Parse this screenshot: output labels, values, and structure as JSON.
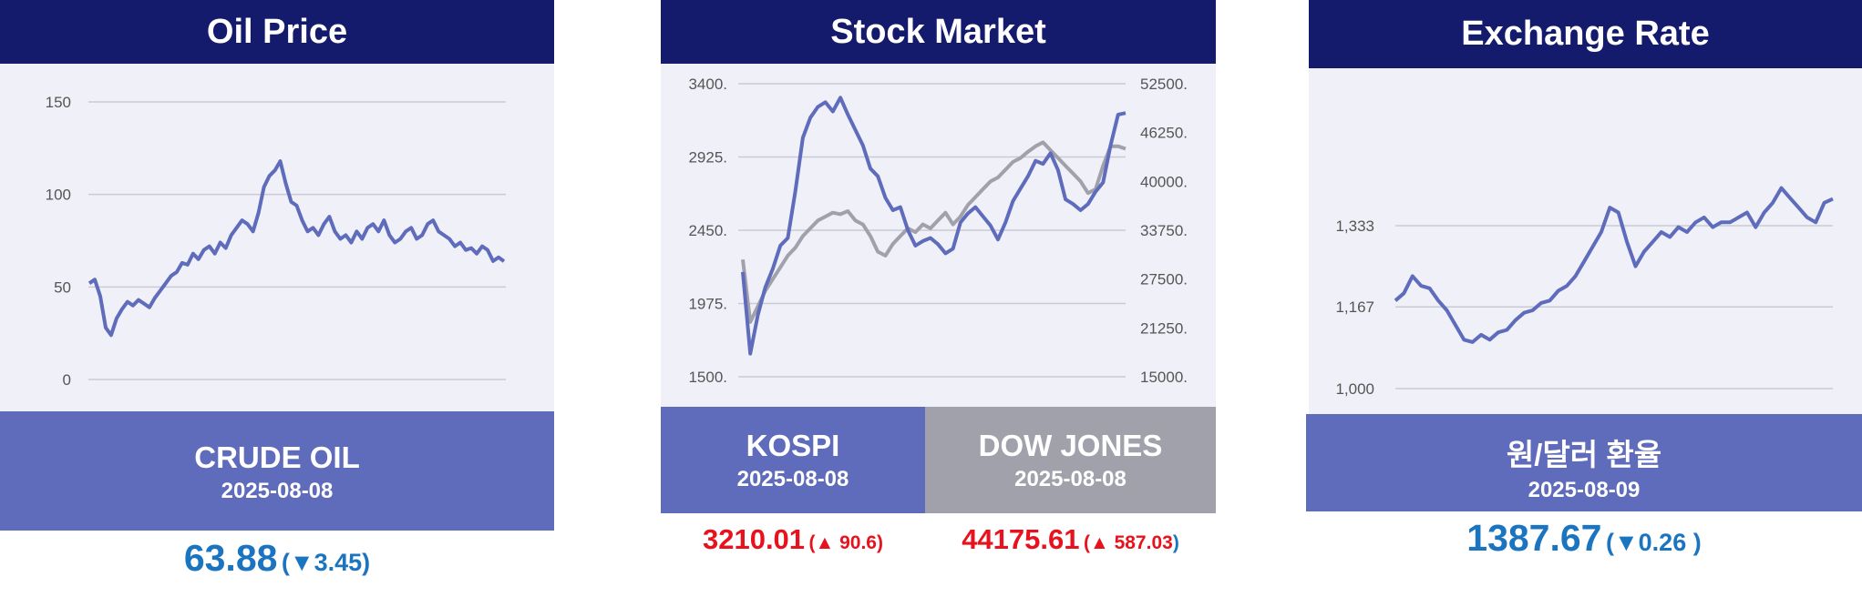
{
  "colors": {
    "header": "#141a6c",
    "plot_bg": "#f0f1f8",
    "band": "#5f6bbb",
    "band_gray": "#a0a1ab",
    "line_primary": "#5f6bbb",
    "line_secondary": "#a0a1ab",
    "up": "#e8121e",
    "down": "#1a74c0"
  },
  "oil": {
    "title": "Oil Price",
    "name": "CRUDE OIL",
    "date": "2025-08-08",
    "price": "63.88",
    "change_open": "(",
    "change": "▼3.45",
    "change_close": ")"
  },
  "stock": {
    "title": "Stock Market",
    "kospi": {
      "name": "KOSPI",
      "date": "2025-08-08",
      "price": "3210.01",
      "change_open": "(",
      "change": "▲ 90.6",
      "change_close": ")"
    },
    "dow": {
      "name": "DOW JONES",
      "date": "2025-08-08",
      "price": "44175.61",
      "change_open": "(",
      "change": "▲ 587.03",
      "change_close": ")"
    }
  },
  "fx": {
    "title": "Exchange Rate",
    "name": "원/달러 환율",
    "date": "2025-08-09",
    "price": "1387.67",
    "change_open": "(",
    "change": "▼0.26",
    "change_close": " )"
  },
  "chart_data": [
    {
      "type": "line",
      "title": "Oil Price",
      "ylim": [
        0,
        150
      ],
      "yticks": [
        "150",
        "100",
        "50",
        "0"
      ],
      "grid": true,
      "series": [
        {
          "name": "CRUDE OIL",
          "values": [
            52,
            54,
            45,
            28,
            24,
            33,
            38,
            42,
            40,
            43,
            41,
            39,
            44,
            48,
            52,
            56,
            58,
            63,
            62,
            68,
            65,
            70,
            72,
            68,
            74,
            71,
            78,
            82,
            86,
            84,
            80,
            90,
            104,
            110,
            113,
            118,
            106,
            96,
            94,
            86,
            80,
            82,
            78,
            84,
            88,
            80,
            76,
            78,
            74,
            80,
            76,
            82,
            84,
            80,
            86,
            78,
            74,
            76,
            80,
            82,
            76,
            78,
            84,
            86,
            80,
            78,
            76,
            72,
            74,
            70,
            71,
            68,
            72,
            70,
            64,
            66,
            63.88
          ]
        }
      ]
    },
    {
      "type": "line",
      "title": "Stock Market",
      "ylim_left": [
        1500,
        3400
      ],
      "yticks_left": [
        "3400.",
        "2925.",
        "2450.",
        "1975.",
        "1500."
      ],
      "ylim_right": [
        15000,
        52500
      ],
      "yticks_right": [
        "52500.",
        "46250.",
        "40000.",
        "33750.",
        "27500.",
        "21250.",
        "15000."
      ],
      "grid": true,
      "series": [
        {
          "name": "KOSPI",
          "axis": "left",
          "values": [
            2180,
            1650,
            1900,
            2080,
            2200,
            2350,
            2400,
            2700,
            3050,
            3180,
            3250,
            3280,
            3220,
            3310,
            3200,
            3100,
            3000,
            2850,
            2800,
            2660,
            2580,
            2600,
            2450,
            2350,
            2380,
            2400,
            2360,
            2300,
            2330,
            2500,
            2560,
            2600,
            2540,
            2480,
            2390,
            2500,
            2640,
            2720,
            2800,
            2900,
            2880,
            2950,
            2840,
            2650,
            2620,
            2580,
            2620,
            2700,
            2760,
            3000,
            3200,
            3210.01
          ]
        },
        {
          "name": "DOW JONES",
          "axis": "right",
          "values": [
            30000,
            22000,
            24000,
            26000,
            27500,
            29000,
            30500,
            31500,
            33000,
            34000,
            35000,
            35500,
            36000,
            35800,
            36200,
            35000,
            34500,
            33000,
            31000,
            30500,
            32000,
            33000,
            34000,
            33500,
            34500,
            34000,
            35000,
            36000,
            34500,
            35500,
            37000,
            38000,
            39000,
            40000,
            40500,
            41500,
            42500,
            43000,
            43800,
            44500,
            45000,
            44000,
            43000,
            42000,
            41000,
            40000,
            38500,
            39000,
            42000,
            44500,
            44500,
            44175.61
          ]
        }
      ]
    },
    {
      "type": "line",
      "title": "Exchange Rate",
      "ylim": [
        1000,
        1400
      ],
      "yticks": [
        "1,333",
        "1,167",
        "1,000"
      ],
      "grid": true,
      "series": [
        {
          "name": "원/달러 환율",
          "values": [
            1180,
            1195,
            1230,
            1210,
            1205,
            1180,
            1160,
            1130,
            1100,
            1095,
            1110,
            1100,
            1115,
            1120,
            1140,
            1155,
            1160,
            1175,
            1180,
            1200,
            1210,
            1230,
            1260,
            1290,
            1320,
            1370,
            1360,
            1300,
            1250,
            1280,
            1300,
            1320,
            1310,
            1330,
            1320,
            1340,
            1350,
            1330,
            1340,
            1340,
            1350,
            1360,
            1330,
            1360,
            1380,
            1410,
            1390,
            1370,
            1350,
            1340,
            1380,
            1387.67
          ]
        }
      ]
    }
  ]
}
